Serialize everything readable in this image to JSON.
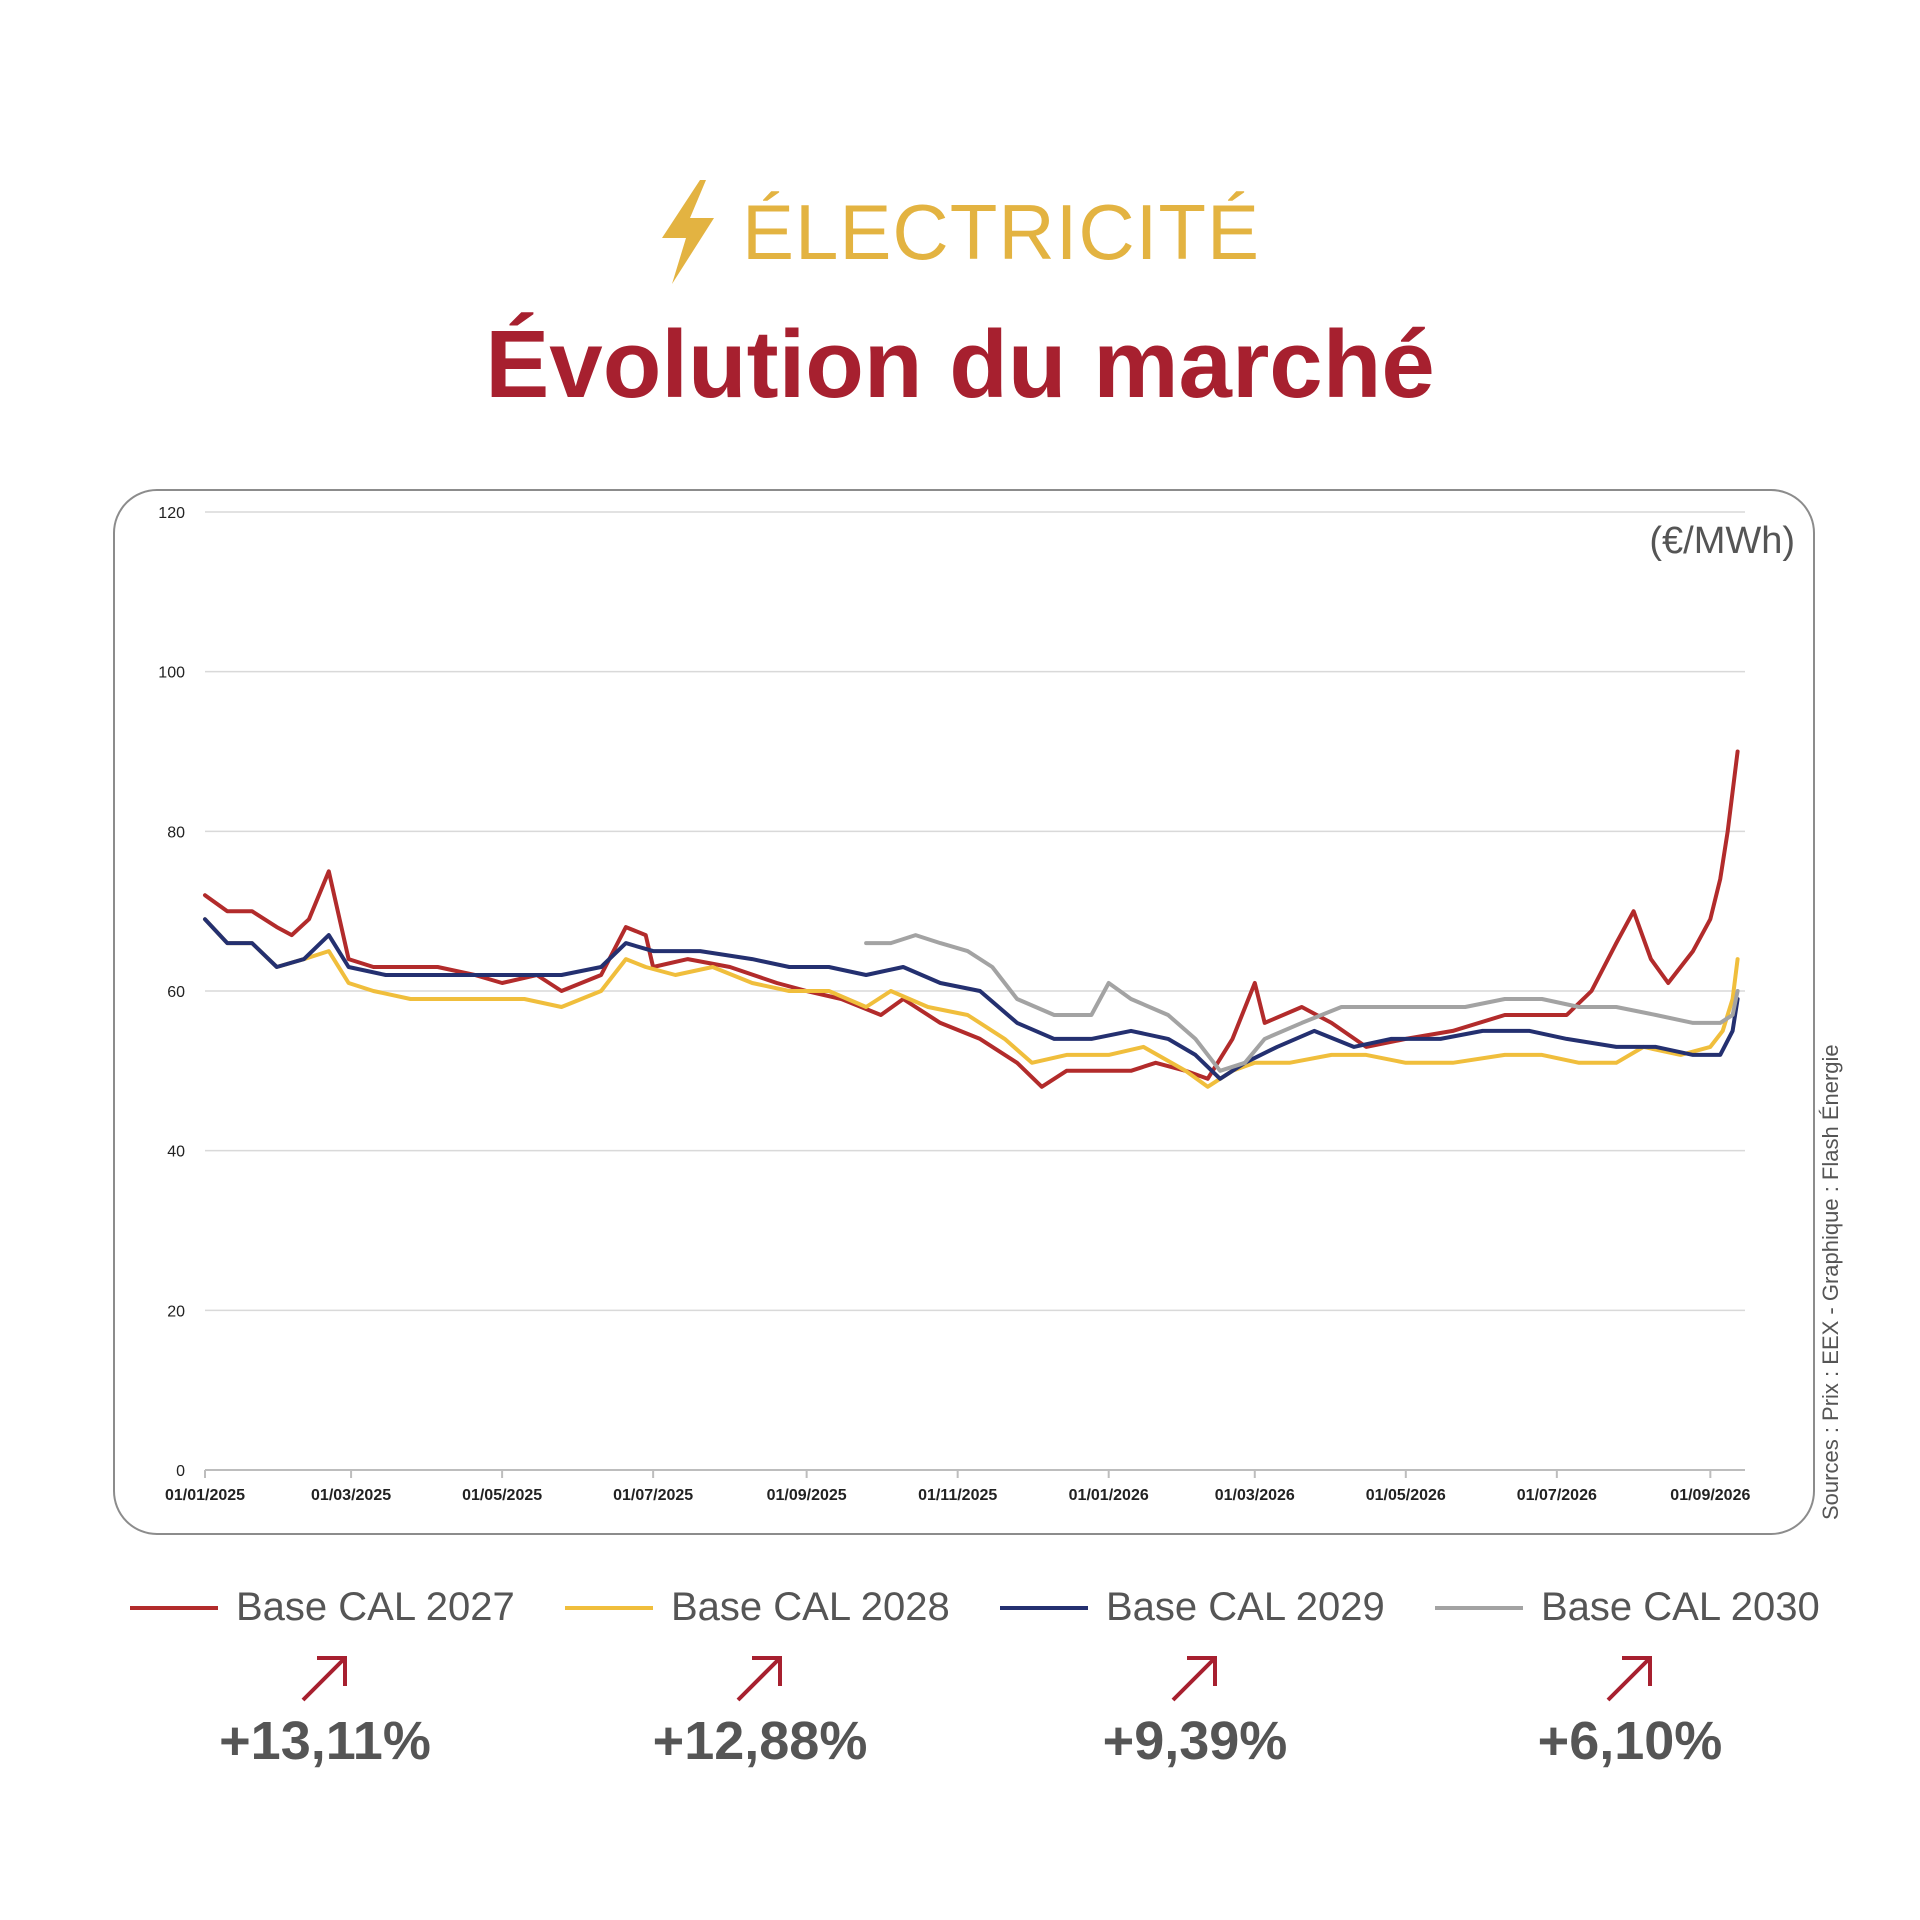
{
  "header": {
    "kicker": "ÉLECTRICITÉ",
    "title": "Évolution du marché"
  },
  "colors": {
    "accent_gold": "#e3b341",
    "accent_red": "#a7202f"
  },
  "unit_label": "(€/MWh)",
  "source": "Sources : Prix : EEX - Graphique : Flash Énergie",
  "legend": [
    {
      "label": "Base CAL 2027",
      "color": "#b22b2b"
    },
    {
      "label": "Base CAL 2028",
      "color": "#f0be3c"
    },
    {
      "label": "Base CAL 2029",
      "color": "#243070"
    },
    {
      "label": "Base CAL 2030",
      "color": "#a3a3a3"
    }
  ],
  "changes": [
    {
      "value": "+13,11%",
      "direction": "up-right-arrow"
    },
    {
      "value": "+12,88%",
      "direction": "up-right-arrow"
    },
    {
      "value": "+9,39%",
      "direction": "up-right-arrow"
    },
    {
      "value": "+6,10%",
      "direction": "up-right-arrow"
    }
  ],
  "chart_data": {
    "type": "line",
    "x_ticks": [
      "01/01/2025",
      "01/03/2025",
      "01/05/2025",
      "01/07/2025",
      "01/09/2025",
      "01/11/2025",
      "01/01/2026",
      "01/03/2026",
      "01/05/2026",
      "01/07/2026",
      "01/09/2026"
    ],
    "y_ticks": [
      0,
      20,
      40,
      60,
      80,
      100,
      120
    ],
    "ylim": [
      0,
      120
    ],
    "xlim": [
      "2025-01-01",
      "2026-09-15"
    ],
    "grid": true,
    "legend_position": "bottom",
    "series": [
      {
        "name": "Base CAL 2027",
        "color": "#b22b2b",
        "points": [
          [
            "2025-01-01",
            72
          ],
          [
            "2025-01-10",
            70
          ],
          [
            "2025-01-20",
            70
          ],
          [
            "2025-01-30",
            68
          ],
          [
            "2025-02-05",
            67
          ],
          [
            "2025-02-12",
            69
          ],
          [
            "2025-02-20",
            75
          ],
          [
            "2025-02-28",
            64
          ],
          [
            "2025-03-10",
            63
          ],
          [
            "2025-03-25",
            63
          ],
          [
            "2025-04-05",
            63
          ],
          [
            "2025-04-20",
            62
          ],
          [
            "2025-05-01",
            61
          ],
          [
            "2025-05-15",
            62
          ],
          [
            "2025-05-25",
            60
          ],
          [
            "2025-06-10",
            62
          ],
          [
            "2025-06-20",
            68
          ],
          [
            "2025-06-28",
            67
          ],
          [
            "2025-07-01",
            63
          ],
          [
            "2025-07-15",
            64
          ],
          [
            "2025-08-01",
            63
          ],
          [
            "2025-08-20",
            61
          ],
          [
            "2025-09-01",
            60
          ],
          [
            "2025-09-15",
            59
          ],
          [
            "2025-10-01",
            57
          ],
          [
            "2025-10-10",
            59
          ],
          [
            "2025-10-25",
            56
          ],
          [
            "2025-11-10",
            54
          ],
          [
            "2025-11-25",
            51
          ],
          [
            "2025-12-05",
            48
          ],
          [
            "2025-12-15",
            50
          ],
          [
            "2025-12-30",
            50
          ],
          [
            "2026-01-10",
            50
          ],
          [
            "2026-01-20",
            51
          ],
          [
            "2026-02-01",
            50
          ],
          [
            "2026-02-10",
            49
          ],
          [
            "2026-02-20",
            54
          ],
          [
            "2026-03-01",
            61
          ],
          [
            "2026-03-05",
            56
          ],
          [
            "2026-03-20",
            58
          ],
          [
            "2026-04-01",
            56
          ],
          [
            "2026-04-15",
            53
          ],
          [
            "2026-05-01",
            54
          ],
          [
            "2026-05-20",
            55
          ],
          [
            "2026-06-10",
            57
          ],
          [
            "2026-06-25",
            57
          ],
          [
            "2026-07-05",
            57
          ],
          [
            "2026-07-15",
            60
          ],
          [
            "2026-07-25",
            66
          ],
          [
            "2026-08-01",
            70
          ],
          [
            "2026-08-08",
            64
          ],
          [
            "2026-08-15",
            61
          ],
          [
            "2026-08-25",
            65
          ],
          [
            "2026-09-01",
            69
          ],
          [
            "2026-09-05",
            74
          ],
          [
            "2026-09-08",
            80
          ],
          [
            "2026-09-12",
            90
          ]
        ]
      },
      {
        "name": "Base CAL 2028",
        "color": "#f0be3c",
        "points": [
          [
            "2025-01-01",
            69
          ],
          [
            "2025-01-10",
            66
          ],
          [
            "2025-01-20",
            66
          ],
          [
            "2025-01-30",
            63
          ],
          [
            "2025-02-10",
            64
          ],
          [
            "2025-02-20",
            65
          ],
          [
            "2025-02-28",
            61
          ],
          [
            "2025-03-10",
            60
          ],
          [
            "2025-03-25",
            59
          ],
          [
            "2025-04-10",
            59
          ],
          [
            "2025-04-25",
            59
          ],
          [
            "2025-05-10",
            59
          ],
          [
            "2025-05-25",
            58
          ],
          [
            "2025-06-10",
            60
          ],
          [
            "2025-06-20",
            64
          ],
          [
            "2025-06-28",
            63
          ],
          [
            "2025-07-10",
            62
          ],
          [
            "2025-07-25",
            63
          ],
          [
            "2025-08-10",
            61
          ],
          [
            "2025-08-25",
            60
          ],
          [
            "2025-09-10",
            60
          ],
          [
            "2025-09-25",
            58
          ],
          [
            "2025-10-05",
            60
          ],
          [
            "2025-10-20",
            58
          ],
          [
            "2025-11-05",
            57
          ],
          [
            "2025-11-20",
            54
          ],
          [
            "2025-12-01",
            51
          ],
          [
            "2025-12-15",
            52
          ],
          [
            "2026-01-01",
            52
          ],
          [
            "2026-01-15",
            53
          ],
          [
            "2026-02-01",
            50
          ],
          [
            "2026-02-10",
            48
          ],
          [
            "2026-02-20",
            50
          ],
          [
            "2026-03-01",
            51
          ],
          [
            "2026-03-15",
            51
          ],
          [
            "2026-04-01",
            52
          ],
          [
            "2026-04-15",
            52
          ],
          [
            "2026-05-01",
            51
          ],
          [
            "2026-05-20",
            51
          ],
          [
            "2026-06-10",
            52
          ],
          [
            "2026-06-25",
            52
          ],
          [
            "2026-07-10",
            51
          ],
          [
            "2026-07-25",
            51
          ],
          [
            "2026-08-05",
            53
          ],
          [
            "2026-08-20",
            52
          ],
          [
            "2026-09-01",
            53
          ],
          [
            "2026-09-06",
            55
          ],
          [
            "2026-09-10",
            59
          ],
          [
            "2026-09-12",
            64
          ]
        ]
      },
      {
        "name": "Base CAL 2029",
        "color": "#243070",
        "points": [
          [
            "2025-01-01",
            69
          ],
          [
            "2025-01-10",
            66
          ],
          [
            "2025-01-20",
            66
          ],
          [
            "2025-01-30",
            63
          ],
          [
            "2025-02-10",
            64
          ],
          [
            "2025-02-20",
            67
          ],
          [
            "2025-02-28",
            63
          ],
          [
            "2025-03-15",
            62
          ],
          [
            "2025-04-01",
            62
          ],
          [
            "2025-04-20",
            62
          ],
          [
            "2025-05-10",
            62
          ],
          [
            "2025-05-25",
            62
          ],
          [
            "2025-06-10",
            63
          ],
          [
            "2025-06-20",
            66
          ],
          [
            "2025-07-01",
            65
          ],
          [
            "2025-07-20",
            65
          ],
          [
            "2025-08-10",
            64
          ],
          [
            "2025-08-25",
            63
          ],
          [
            "2025-09-10",
            63
          ],
          [
            "2025-09-25",
            62
          ],
          [
            "2025-10-10",
            63
          ],
          [
            "2025-10-25",
            61
          ],
          [
            "2025-11-10",
            60
          ],
          [
            "2025-11-25",
            56
          ],
          [
            "2025-12-10",
            54
          ],
          [
            "2025-12-25",
            54
          ],
          [
            "2026-01-10",
            55
          ],
          [
            "2026-01-25",
            54
          ],
          [
            "2026-02-05",
            52
          ],
          [
            "2026-02-15",
            49
          ],
          [
            "2026-02-25",
            51
          ],
          [
            "2026-03-10",
            53
          ],
          [
            "2026-03-25",
            55
          ],
          [
            "2026-04-10",
            53
          ],
          [
            "2026-04-25",
            54
          ],
          [
            "2026-05-15",
            54
          ],
          [
            "2026-06-01",
            55
          ],
          [
            "2026-06-20",
            55
          ],
          [
            "2026-07-05",
            54
          ],
          [
            "2026-07-25",
            53
          ],
          [
            "2026-08-10",
            53
          ],
          [
            "2026-08-25",
            52
          ],
          [
            "2026-09-05",
            52
          ],
          [
            "2026-09-10",
            55
          ],
          [
            "2026-09-12",
            59
          ]
        ]
      },
      {
        "name": "Base CAL 2030",
        "color": "#a3a3a3",
        "points": [
          [
            "2025-09-25",
            66
          ],
          [
            "2025-10-05",
            66
          ],
          [
            "2025-10-15",
            67
          ],
          [
            "2025-10-25",
            66
          ],
          [
            "2025-11-05",
            65
          ],
          [
            "2025-11-15",
            63
          ],
          [
            "2025-11-25",
            59
          ],
          [
            "2025-12-10",
            57
          ],
          [
            "2025-12-25",
            57
          ],
          [
            "2026-01-01",
            61
          ],
          [
            "2026-01-10",
            59
          ],
          [
            "2026-01-25",
            57
          ],
          [
            "2026-02-05",
            54
          ],
          [
            "2026-02-15",
            50
          ],
          [
            "2026-02-25",
            51
          ],
          [
            "2026-03-05",
            54
          ],
          [
            "2026-03-20",
            56
          ],
          [
            "2026-04-05",
            58
          ],
          [
            "2026-04-20",
            58
          ],
          [
            "2026-05-10",
            58
          ],
          [
            "2026-05-25",
            58
          ],
          [
            "2026-06-10",
            59
          ],
          [
            "2026-06-25",
            59
          ],
          [
            "2026-07-10",
            58
          ],
          [
            "2026-07-25",
            58
          ],
          [
            "2026-08-10",
            57
          ],
          [
            "2026-08-25",
            56
          ],
          [
            "2026-09-05",
            56
          ],
          [
            "2026-09-10",
            57
          ],
          [
            "2026-09-12",
            60
          ]
        ]
      }
    ]
  }
}
